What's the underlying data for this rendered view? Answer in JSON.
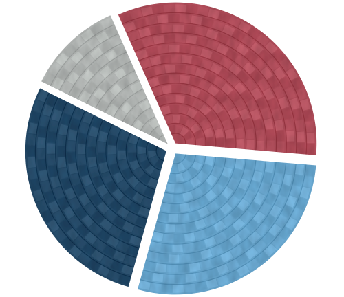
{
  "chart_data": {
    "type": "pie",
    "title": "",
    "style": "exploded woven-texture pie",
    "start_angle_deg": -114,
    "direction": "clockwise",
    "slices": [
      {
        "value": 33,
        "color": "#B8505E"
      },
      {
        "value": 28,
        "color": "#6EB0DA"
      },
      {
        "value": 28,
        "color": "#244C6C"
      },
      {
        "value": 11,
        "color": "#BCC0BE"
      }
    ]
  }
}
